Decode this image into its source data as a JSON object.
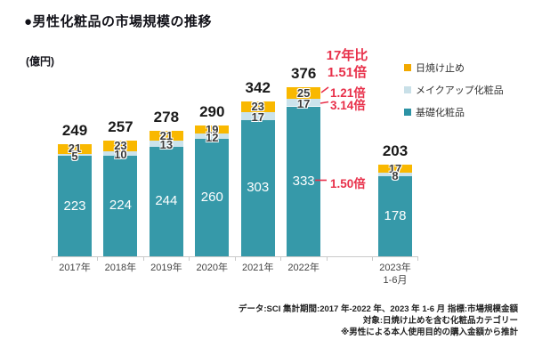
{
  "title": "●男性化粧品の市場規模の推移",
  "unit_label": "(億円)",
  "legend": [
    {
      "key": "sunscreen",
      "label": "日焼け止め",
      "color": "#F2A900"
    },
    {
      "key": "makeup",
      "label": "メイクアップ化粧品",
      "color": "#C9E0E8"
    },
    {
      "key": "base",
      "label": "基礎化粧品",
      "color": "#2D93A5"
    }
  ],
  "chart_data": {
    "type": "bar",
    "stacked": true,
    "title": "男性化粧品の市場規模の推移",
    "unit": "億円",
    "categories": [
      "2017年",
      "2018年",
      "2019年",
      "2020年",
      "2021年",
      "2022年",
      "2023年\n1-6月"
    ],
    "series": [
      {
        "name": "基礎化粧品",
        "color": "#3699A9",
        "values": [
          223,
          224,
          244,
          260,
          303,
          333,
          178
        ]
      },
      {
        "name": "メイクアップ化粧品",
        "color": "#CBE3EC",
        "values": [
          5,
          10,
          13,
          12,
          17,
          17,
          8
        ]
      },
      {
        "name": "日焼け止め",
        "color": "#F9B800",
        "values": [
          21,
          23,
          21,
          19,
          23,
          25,
          17
        ]
      }
    ],
    "totals": [
      249,
      257,
      278,
      290,
      342,
      376,
      203
    ],
    "ylim": [
      0,
      400
    ],
    "grid": false,
    "legend_position": "right"
  },
  "annotations": {
    "vs_title": "17年比",
    "vs_total": "1.51倍",
    "vs_sunscreen": "1.21倍",
    "vs_makeup": "3.14倍",
    "vs_base": "1.50倍",
    "red": "#E8304A"
  },
  "footer": {
    "line1": "データ:SCI 集計期間:2017 年-2022 年、2023 年 1-6 月 指標:市場規模金額",
    "line2": "対象:日焼け止めを含む化粧品カテゴリー",
    "line3": "※男性による本人使用目的の購入金額から推計"
  }
}
